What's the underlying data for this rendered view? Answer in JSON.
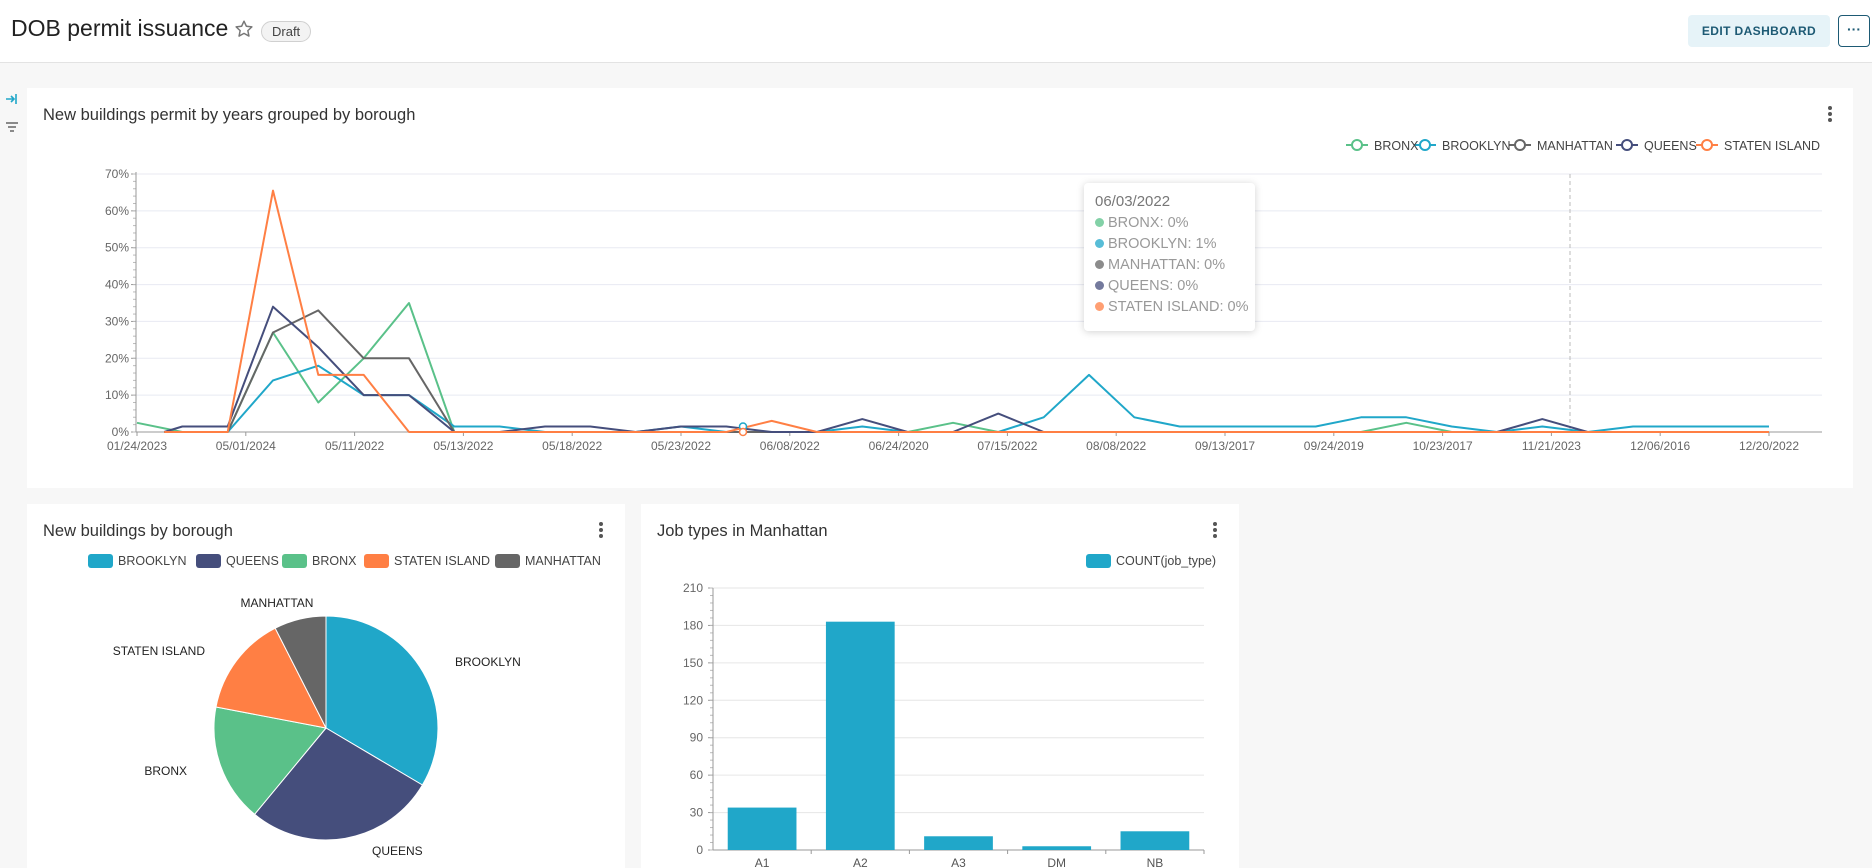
{
  "header": {
    "title": "DOB permit issuance",
    "badge": "Draft",
    "edit_label": "EDIT DASHBOARD",
    "more_label": "···"
  },
  "colors": {
    "BRONX": "#5ac189",
    "BROOKLYN": "#20a7c9",
    "MANHATTAN": "#666666",
    "QUEENS": "#454e7c",
    "STATEN ISLAND": "#ff7f44"
  },
  "line_panel": {
    "title": "New buildings permit by years grouped by borough",
    "tooltip": {
      "date": "06/03/2022",
      "rows": [
        {
          "series": "BRONX",
          "text": "BRONX: 0%"
        },
        {
          "series": "BROOKLYN",
          "text": "BROOKLYN: 1%"
        },
        {
          "series": "MANHATTAN",
          "text": "MANHATTAN: 0%"
        },
        {
          "series": "QUEENS",
          "text": "QUEENS: 0%"
        },
        {
          "series": "STATEN ISLAND",
          "text": "STATEN ISLAND: 0%"
        }
      ]
    }
  },
  "pie_panel": {
    "title": "New buildings by borough"
  },
  "bar_panel": {
    "title": "Job types in Manhattan"
  },
  "chart_data": [
    {
      "type": "line",
      "title": "New buildings permit by years grouped by borough",
      "x_ticks": [
        "01/24/2023",
        "05/01/2024",
        "05/11/2022",
        "05/13/2022",
        "05/18/2022",
        "05/23/2022",
        "06/08/2022",
        "06/24/2020",
        "07/15/2022",
        "08/08/2022",
        "09/13/2017",
        "09/24/2019",
        "10/23/2017",
        "11/21/2023",
        "12/06/2016",
        "12/20/2022"
      ],
      "y_ticks": [
        "0%",
        "10%",
        "20%",
        "30%",
        "40%",
        "50%",
        "60%",
        "70%"
      ],
      "ylim": [
        0,
        70
      ],
      "y_unit": "%",
      "legend": [
        "BRONX",
        "BROOKLYN",
        "MANHATTAN",
        "QUEENS",
        "STATEN ISLAND"
      ],
      "legend_position": "top-right",
      "grid": true,
      "series": [
        {
          "name": "BRONX",
          "points": [
            [
              0,
              2.5
            ],
            [
              0.5,
              0
            ],
            [
              1,
              0
            ],
            [
              1.5,
              27
            ],
            [
              2,
              8
            ],
            [
              2.5,
              20
            ],
            [
              3,
              35
            ],
            [
              3.5,
              0
            ],
            [
              15,
              0
            ],
            [
              8.5,
              0
            ],
            [
              9,
              2.5
            ],
            [
              9.5,
              0
            ],
            [
              13.5,
              0
            ],
            [
              14,
              2.5
            ],
            [
              14.5,
              0
            ]
          ]
        },
        {
          "name": "BROOKLYN",
          "points": [
            [
              0.3,
              0
            ],
            [
              1,
              0
            ],
            [
              1.5,
              14
            ],
            [
              2,
              18
            ],
            [
              2.5,
              10
            ],
            [
              3,
              10
            ],
            [
              3.5,
              1.5
            ],
            [
              4,
              1.5
            ],
            [
              4.5,
              0
            ],
            [
              5,
              0
            ],
            [
              5.5,
              0
            ],
            [
              6,
              1.5
            ],
            [
              6.5,
              0
            ],
            [
              7.5,
              0
            ],
            [
              8,
              1.5
            ],
            [
              8.5,
              0
            ],
            [
              9,
              0
            ],
            [
              9.5,
              0
            ],
            [
              10,
              4
            ],
            [
              10.5,
              15.5
            ],
            [
              11,
              4
            ],
            [
              11.5,
              1.5
            ],
            [
              12,
              1.5
            ],
            [
              13,
              1.5
            ],
            [
              13.5,
              4
            ],
            [
              14,
              4
            ],
            [
              14.5,
              1.5
            ],
            [
              15,
              0
            ],
            [
              15.5,
              1.5
            ],
            [
              16,
              0
            ],
            [
              16.5,
              1.5
            ],
            [
              17,
              1.5
            ],
            [
              17.5,
              1.5
            ],
            [
              18,
              1.5
            ]
          ]
        },
        {
          "name": "MANHATTAN",
          "points": [
            [
              0.3,
              0
            ],
            [
              1,
              0
            ],
            [
              1.5,
              27
            ],
            [
              2,
              33
            ],
            [
              2.5,
              20
            ],
            [
              3,
              20
            ],
            [
              3.5,
              0
            ],
            [
              18,
              0
            ]
          ]
        },
        {
          "name": "QUEENS",
          "points": [
            [
              0.3,
              0
            ],
            [
              0.5,
              1.5
            ],
            [
              1,
              1.5
            ],
            [
              1.5,
              34
            ],
            [
              2,
              23
            ],
            [
              2.5,
              10
            ],
            [
              3,
              10
            ],
            [
              3.5,
              0
            ],
            [
              4,
              0
            ],
            [
              4.5,
              1.5
            ],
            [
              5,
              1.5
            ],
            [
              5.5,
              0
            ],
            [
              6,
              1.5
            ],
            [
              6.5,
              1.5
            ],
            [
              7,
              0
            ],
            [
              7.5,
              0
            ],
            [
              8,
              3.5
            ],
            [
              8.5,
              0
            ],
            [
              9,
              0
            ],
            [
              9.5,
              5
            ],
            [
              10,
              0
            ],
            [
              15,
              0
            ],
            [
              15.5,
              3.5
            ],
            [
              16,
              0
            ],
            [
              18,
              0
            ]
          ]
        },
        {
          "name": "STATEN ISLAND",
          "points": [
            [
              0.3,
              0
            ],
            [
              1,
              0
            ],
            [
              1.5,
              65.5
            ],
            [
              2,
              15.5
            ],
            [
              2.5,
              15.5
            ],
            [
              3,
              0
            ],
            [
              4,
              0
            ],
            [
              6.5,
              0
            ],
            [
              7,
              3
            ],
            [
              7.5,
              0
            ],
            [
              18,
              0
            ]
          ]
        }
      ]
    },
    {
      "type": "pie",
      "title": "New buildings by borough",
      "legend": [
        "BROOKLYN",
        "QUEENS",
        "BRONX",
        "STATEN ISLAND",
        "MANHATTAN"
      ],
      "legend_position": "top",
      "slices": [
        {
          "label": "BROOKLYN",
          "value": 33.5
        },
        {
          "label": "QUEENS",
          "value": 27.5
        },
        {
          "label": "BRONX",
          "value": 17
        },
        {
          "label": "STATEN ISLAND",
          "value": 14.5
        },
        {
          "label": "MANHATTAN",
          "value": 7.5
        }
      ]
    },
    {
      "type": "bar",
      "title": "Job types in Manhattan",
      "legend": [
        "COUNT(job_type)"
      ],
      "legend_position": "top-right",
      "categories": [
        "A1",
        "A2",
        "A3",
        "DM",
        "NB"
      ],
      "values": [
        34,
        183,
        11,
        3,
        15
      ],
      "ylim": [
        0,
        210
      ],
      "y_ticks": [
        "0",
        "30",
        "60",
        "90",
        "120",
        "150",
        "180",
        "210"
      ],
      "grid": true
    }
  ]
}
